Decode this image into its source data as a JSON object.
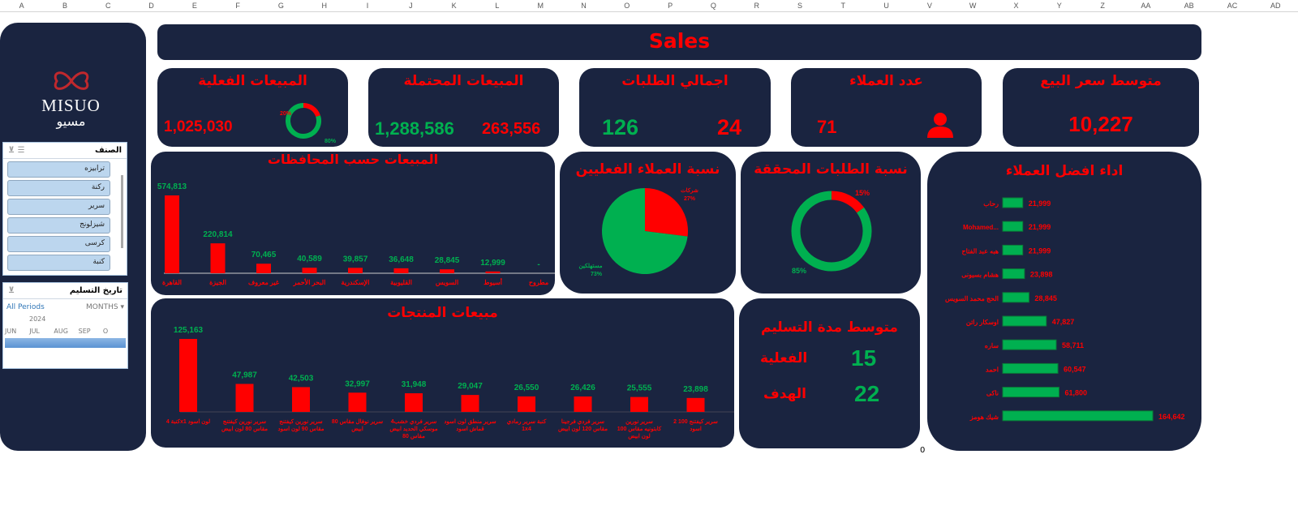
{
  "columns": [
    "A",
    "B",
    "C",
    "D",
    "E",
    "F",
    "G",
    "H",
    "I",
    "J",
    "K",
    "L",
    "M",
    "N",
    "O",
    "P",
    "Q",
    "R",
    "S",
    "T",
    "U",
    "V",
    "W",
    "X",
    "Y",
    "Z",
    "AA",
    "AB",
    "AC",
    "AD"
  ],
  "title": "Sales",
  "logo": {
    "latin": "MISUO",
    "arabic": "مسيو"
  },
  "slicer_category": {
    "title": "الصنف",
    "items": [
      "ترابيزه",
      "ركنة",
      "سرير",
      "شيزلونج",
      "كرسى",
      "كنبة"
    ]
  },
  "slicer_date": {
    "title": "تاريخ التسليم",
    "all_periods": "All Periods",
    "unit": "MONTHS",
    "year": "2024",
    "months": [
      "JUN",
      "JUL",
      "AUG",
      "SEP",
      "O"
    ]
  },
  "kpis": {
    "actual_sales": {
      "title": "المبيعات الفعلية",
      "value": "1,025,030",
      "donut": {
        "actual_pct": 80,
        "remaining_pct": 20,
        "label_a": "80%",
        "label_b": "20%"
      }
    },
    "potential_sales": {
      "title": "المبيعات المحتملة",
      "value_green": "1,288,586",
      "value_red": "263,556"
    },
    "orders": {
      "title": "اجمالي الطلبات",
      "value_green": "126",
      "value_red": "24"
    },
    "customers": {
      "title": "عدد العملاء",
      "value": "71",
      "icon": "user-icon"
    },
    "avg_price": {
      "title": "متوسط سعر البيع",
      "value": "10,227"
    }
  },
  "chart_data": [
    {
      "type": "bar",
      "title": "المبيعات حسب المحافظات",
      "categories": [
        "القاهرة",
        "الجيزة",
        "غير معروف",
        "البحر الأحمر",
        "الإسكندرية",
        "القليوبية",
        "السويس",
        "أسيوط",
        "مطروح"
      ],
      "values": [
        574813,
        220814,
        70465,
        40589,
        39857,
        36648,
        28845,
        12999,
        0
      ],
      "labels": [
        "574,813",
        "220,814",
        "70,465",
        "40,589",
        "39,857",
        "36,648",
        "28,845",
        "12,999",
        "-"
      ]
    },
    {
      "type": "pie",
      "title": "نسبة العملاء الفعليين",
      "slices": [
        {
          "name": "شركات",
          "value": 27,
          "label": "27%",
          "color": "#ff0000"
        },
        {
          "name": "مستهلكين",
          "value": 73,
          "label": "73%",
          "color": "#00b050"
        }
      ]
    },
    {
      "type": "pie",
      "title": "نسبة الطلبات المحققة",
      "slices": [
        {
          "value": 15,
          "label": "15%",
          "color": "#ff0000"
        },
        {
          "value": 85,
          "label": "85%",
          "color": "#00b050"
        }
      ]
    },
    {
      "type": "bar",
      "orientation": "horizontal",
      "title": "اداء افضل العملاء",
      "categories": [
        "رحاب",
        "Mohamed...",
        "هبه عبد الفتاح",
        "هشام بسيونى",
        "الحج محمد السويس",
        "اوسكار راتن",
        "ساره",
        "احمد",
        "ناكى",
        "شيك هومز"
      ],
      "values": [
        21999,
        21999,
        21999,
        23898,
        28845,
        47827,
        58711,
        60547,
        61800,
        164642
      ],
      "labels": [
        "21,999",
        "21,999",
        "21,999",
        "23,898",
        "28,845",
        "47,827",
        "58,711",
        "60,547",
        "61,800",
        "164,642"
      ]
    },
    {
      "type": "bar",
      "title": "مبيعات المنتجات",
      "categories": [
        "كنبة 4x1 لون اسود",
        "سرير نورين كيفتنج مقاس 80 لون ابيض",
        "سرير نورين كيفتنج مقاس 90 لون اسود",
        "سرير نوفال مقاس 80 ابيض",
        "4سرير فردي خشب موسكي الحديد ابيض مقاس 80",
        "سرير منطق لون اسود قماش اسود",
        "كنبة سرير رمادي 1x4",
        "سرير فردي فرجينا مقاس 120 لون ابيض",
        "سرير نورين كابتونيه مقاس 100 لون ابيض",
        "2 سرير كيفتنج 100 اسود"
      ],
      "values": [
        125163,
        47987,
        42503,
        32997,
        31948,
        29047,
        26550,
        26426,
        25555,
        23898
      ],
      "labels": [
        "125,163",
        "47,987",
        "42,503",
        "32,997",
        "31,948",
        "29,047",
        "26,550",
        "26,426",
        "25,555",
        "23,898"
      ]
    }
  ],
  "delivery": {
    "title": "متوسط مدة التسليم",
    "actual_label": "الفعلية",
    "actual_value": "15",
    "target_label": "الهدف",
    "target_value": "22"
  },
  "cell_value": "0"
}
